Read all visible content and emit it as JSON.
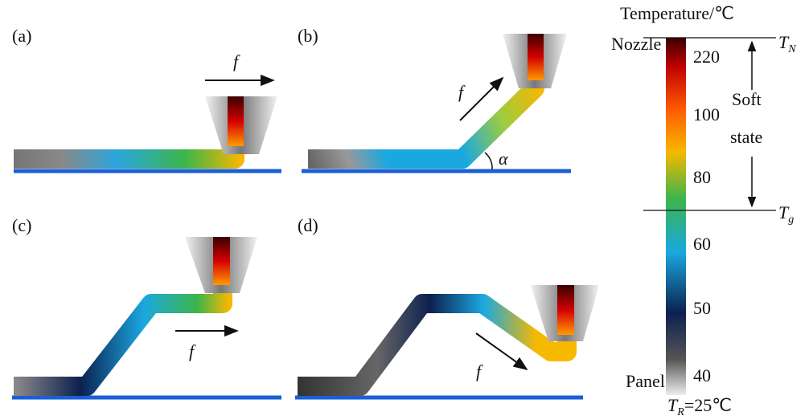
{
  "panels": [
    {
      "label": "(a)",
      "force": "f"
    },
    {
      "label": "(b)",
      "force": "f",
      "angle": "α"
    },
    {
      "label": "(c)",
      "force": "f"
    },
    {
      "label": "(d)",
      "force": "f"
    }
  ],
  "nozzle_label": "Nozzle",
  "panel_label": "Panel",
  "colorbar": {
    "title": "Temperature/℃",
    "tick_labels": [
      "220",
      "100",
      "80",
      "60",
      "50",
      "40"
    ],
    "t_n": {
      "main": "T",
      "sub": "N"
    },
    "t_g": {
      "main": "T",
      "sub": "g"
    },
    "t_r": {
      "main": "T",
      "sub": "R",
      "rest": "=25℃"
    },
    "soft_state": [
      "Soft",
      "state"
    ]
  }
}
